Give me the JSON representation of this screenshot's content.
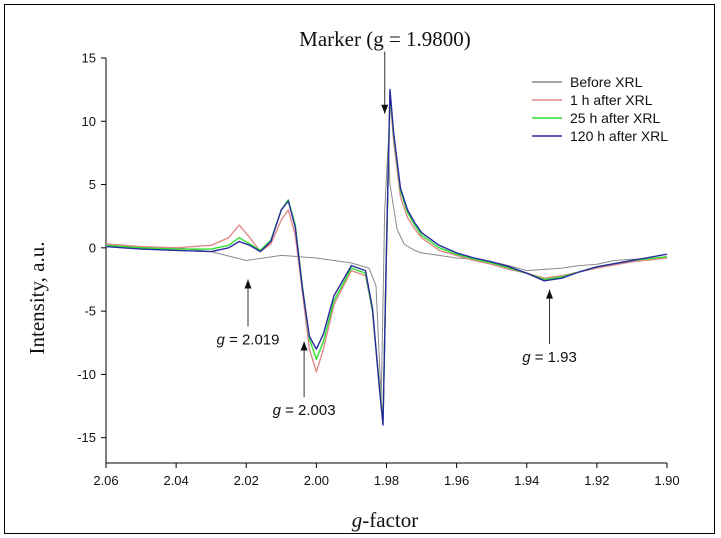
{
  "chart_data": {
    "type": "line",
    "xlabel_italic": "g",
    "xlabel_rest": "-factor",
    "ylabel": "Intensity, a.u.",
    "xlim": [
      2.06,
      1.9
    ],
    "ylim": [
      -17,
      15
    ],
    "x_reversed": true,
    "x_ticks": [
      "2.06",
      "2.04",
      "2.02",
      "2.00",
      "1.98",
      "1.96",
      "1.94",
      "1.92",
      "1.90"
    ],
    "y_ticks": [
      "15",
      "10",
      "5",
      "0",
      "-5",
      "-10",
      "-15"
    ],
    "legend_position": "top-right",
    "grid": false,
    "series": [
      {
        "name": "Before XRL",
        "color": "#8a8a8a",
        "x": [
          2.06,
          2.05,
          2.04,
          2.03,
          2.02,
          2.01,
          2.0,
          1.995,
          1.99,
          1.985,
          1.983,
          1.9815,
          1.9805,
          1.9795,
          1.979,
          1.977,
          1.975,
          1.972,
          1.97,
          1.965,
          1.96,
          1.955,
          1.95,
          1.945,
          1.94,
          1.935,
          1.93,
          1.925,
          1.92,
          1.915,
          1.91,
          1.905,
          1.9
        ],
        "y": [
          0.2,
          0.1,
          0.0,
          -0.3,
          -1.0,
          -0.6,
          -0.8,
          -1.0,
          -1.2,
          -1.6,
          -3.0,
          -12.0,
          3.0,
          8.3,
          5.0,
          1.5,
          0.3,
          -0.2,
          -0.4,
          -0.6,
          -0.8,
          -0.9,
          -1.1,
          -1.4,
          -1.8,
          -1.7,
          -1.6,
          -1.4,
          -1.3,
          -1.0,
          -0.9,
          -0.9,
          -0.7
        ]
      },
      {
        "name": "1 h after XRL",
        "color": "#e08a8a",
        "x": [
          2.06,
          2.05,
          2.04,
          2.03,
          2.025,
          2.022,
          2.019,
          2.016,
          2.013,
          2.01,
          2.008,
          2.006,
          2.004,
          2.002,
          2.0,
          1.998,
          1.995,
          1.99,
          1.986,
          1.984,
          1.982,
          1.981,
          1.98,
          1.979,
          1.978,
          1.976,
          1.974,
          1.972,
          1.97,
          1.965,
          1.96,
          1.955,
          1.95,
          1.945,
          1.94,
          1.935,
          1.93,
          1.925,
          1.92,
          1.91,
          1.9
        ],
        "y": [
          0.3,
          0.1,
          0.0,
          0.2,
          0.8,
          1.8,
          0.8,
          -0.3,
          0.3,
          2.2,
          3.0,
          1.0,
          -3.5,
          -8.0,
          -9.8,
          -8.0,
          -4.5,
          -1.8,
          -2.2,
          -5.0,
          -11.0,
          -13.5,
          0.0,
          12.0,
          8.5,
          4.0,
          2.4,
          1.5,
          0.8,
          -0.2,
          -0.6,
          -1.0,
          -1.3,
          -1.7,
          -2.0,
          -2.4,
          -2.2,
          -1.9,
          -1.6,
          -1.1,
          -0.8
        ]
      },
      {
        "name": "25 h after XRL",
        "color": "#2ee02e",
        "x": [
          2.06,
          2.05,
          2.04,
          2.03,
          2.025,
          2.022,
          2.019,
          2.016,
          2.013,
          2.01,
          2.008,
          2.006,
          2.004,
          2.002,
          2.0,
          1.998,
          1.995,
          1.99,
          1.986,
          1.984,
          1.982,
          1.981,
          1.98,
          1.979,
          1.978,
          1.976,
          1.974,
          1.972,
          1.97,
          1.965,
          1.96,
          1.955,
          1.95,
          1.945,
          1.94,
          1.935,
          1.93,
          1.925,
          1.92,
          1.91,
          1.9
        ],
        "y": [
          0.2,
          0.0,
          -0.1,
          -0.1,
          0.2,
          0.8,
          0.3,
          -0.2,
          0.6,
          3.0,
          3.8,
          1.8,
          -3.0,
          -7.2,
          -8.8,
          -7.4,
          -4.2,
          -1.6,
          -2.0,
          -5.0,
          -11.0,
          -13.8,
          0.0,
          12.3,
          9.0,
          4.5,
          2.8,
          1.8,
          1.0,
          0.0,
          -0.5,
          -0.9,
          -1.2,
          -1.6,
          -2.0,
          -2.5,
          -2.3,
          -1.9,
          -1.5,
          -1.0,
          -0.7
        ]
      },
      {
        "name": "120 h after XRL",
        "color": "#2a2aa0",
        "x": [
          2.06,
          2.05,
          2.04,
          2.03,
          2.025,
          2.022,
          2.019,
          2.016,
          2.013,
          2.01,
          2.008,
          2.006,
          2.004,
          2.002,
          2.0,
          1.998,
          1.995,
          1.99,
          1.986,
          1.984,
          1.982,
          1.981,
          1.98,
          1.979,
          1.978,
          1.976,
          1.974,
          1.972,
          1.97,
          1.965,
          1.96,
          1.955,
          1.95,
          1.945,
          1.94,
          1.935,
          1.93,
          1.925,
          1.92,
          1.91,
          1.9
        ],
        "y": [
          0.1,
          -0.1,
          -0.2,
          -0.3,
          0.0,
          0.5,
          0.2,
          -0.3,
          0.5,
          3.0,
          3.7,
          1.6,
          -3.2,
          -7.0,
          -8.0,
          -6.8,
          -3.8,
          -1.4,
          -1.8,
          -4.8,
          -11.2,
          -14.0,
          0.0,
          12.5,
          9.2,
          4.7,
          3.0,
          2.0,
          1.2,
          0.2,
          -0.4,
          -0.8,
          -1.1,
          -1.5,
          -2.0,
          -2.6,
          -2.4,
          -1.9,
          -1.5,
          -1.0,
          -0.5
        ]
      }
    ],
    "annotations": [
      {
        "id": "marker",
        "text": "Marker (g = 1.9800)",
        "arrow_x": 1.9805,
        "arrow_tip_y": 10.6,
        "arrow_tail_y": 15.5,
        "direction": "down"
      },
      {
        "id": "g2019",
        "prefix": "g",
        "rest": " = 2.019",
        "arrow_x": 2.0195,
        "arrow_tip_y": -2.5,
        "arrow_tail_y": -6.2,
        "direction": "up"
      },
      {
        "id": "g2003",
        "prefix": "g",
        "rest": " = 2.003",
        "arrow_x": 2.0035,
        "arrow_tip_y": -7.4,
        "arrow_tail_y": -11.8,
        "direction": "up"
      },
      {
        "id": "g193",
        "prefix": "g",
        "rest": " = 1.93",
        "arrow_x": 1.9335,
        "arrow_tip_y": -3.3,
        "arrow_tail_y": -7.6,
        "direction": "up"
      }
    ]
  }
}
